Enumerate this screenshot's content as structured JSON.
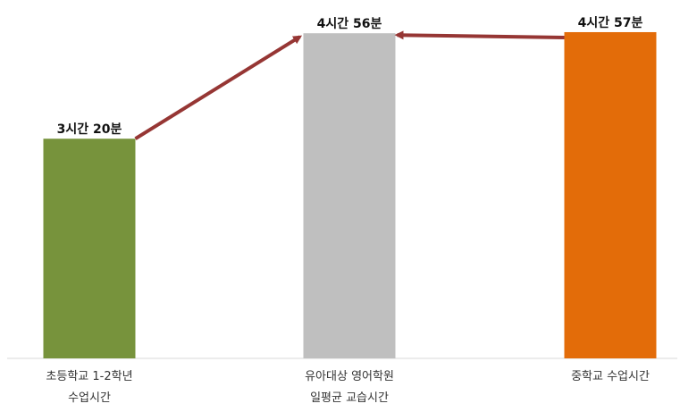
{
  "chart_data": {
    "type": "bar",
    "categories": [
      [
        "초등학교 1-2학년",
        "수업시간"
      ],
      [
        "유아대상 영어학원",
        "일평균 교습시간"
      ],
      [
        "중학교 수업시간"
      ]
    ],
    "values_minutes": [
      200,
      296,
      297
    ],
    "value_labels": [
      "3시간 20분",
      "4시간 56분",
      "4시간 57분"
    ],
    "colors": [
      "#77933c",
      "#bfbfbf",
      "#e36c09"
    ],
    "arrow_color": "#963634",
    "arrows": [
      {
        "from": 0,
        "to": 1
      },
      {
        "from": 2,
        "to": 1
      }
    ],
    "ylim": [
      0,
      310
    ],
    "grid": false,
    "legend": "none"
  }
}
